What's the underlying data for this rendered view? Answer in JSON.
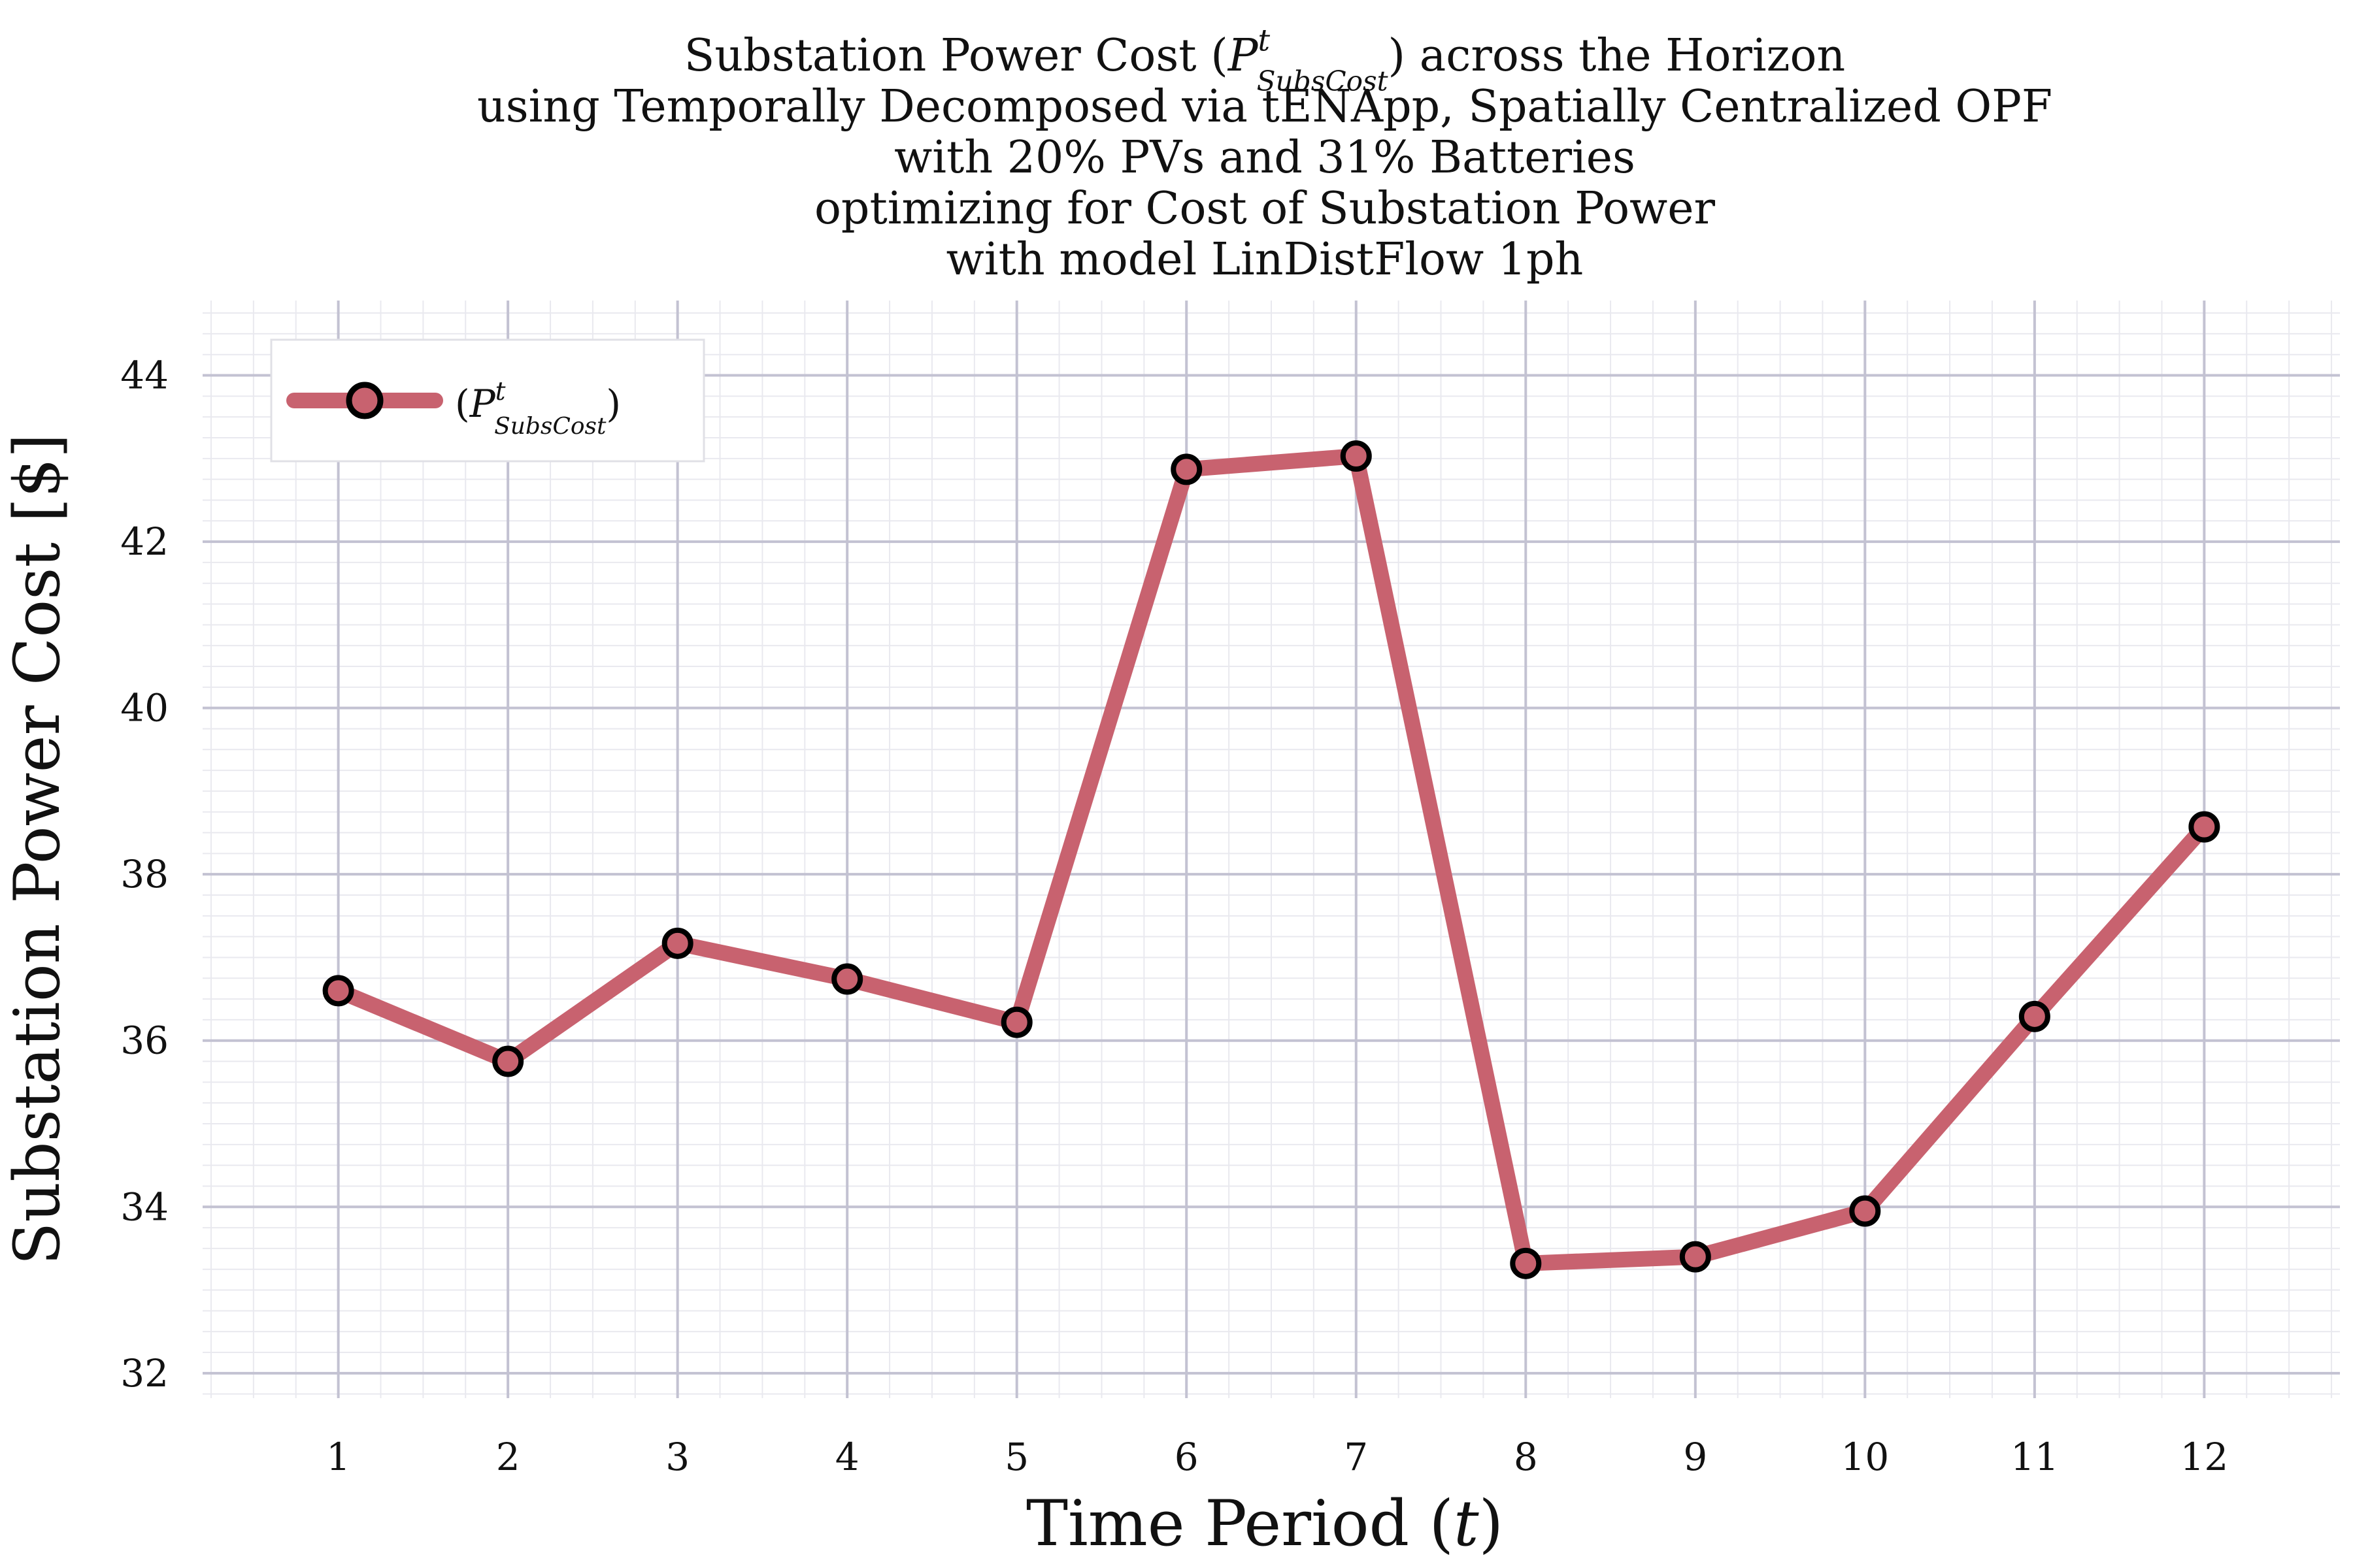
{
  "chart_data": {
    "type": "line",
    "title_lines": [
      "Substation Power Cost (P^t_SubsCost) across the Horizon",
      "using Temporally Decomposed via tENApp, Spatially Centralized OPF",
      "with 20% PVs and 31% Batteries",
      "optimizing for Cost of Substation Power",
      "with model LinDistFlow 1ph"
    ],
    "xlabel": "Time Period (t)",
    "ylabel": "Substation Power Cost [$]",
    "xlim": [
      0.2,
      12.8
    ],
    "ylim": [
      31.7,
      44.9
    ],
    "x_ticks": [
      1,
      2,
      3,
      4,
      5,
      6,
      7,
      8,
      9,
      10,
      11,
      12
    ],
    "y_ticks": [
      32,
      34,
      36,
      38,
      40,
      42,
      44
    ],
    "grid": true,
    "minor_grid": true,
    "legend_position": "top-left",
    "series": [
      {
        "name": "(P^t_SubsCost)",
        "color": "#c8626f",
        "marker_edge": "#000000",
        "x": [
          1,
          2,
          3,
          4,
          5,
          6,
          7,
          8,
          9,
          10,
          11,
          12
        ],
        "values": [
          36.6,
          35.75,
          37.17,
          36.74,
          36.22,
          42.87,
          43.03,
          33.32,
          33.4,
          33.95,
          36.29,
          38.57
        ]
      }
    ]
  }
}
